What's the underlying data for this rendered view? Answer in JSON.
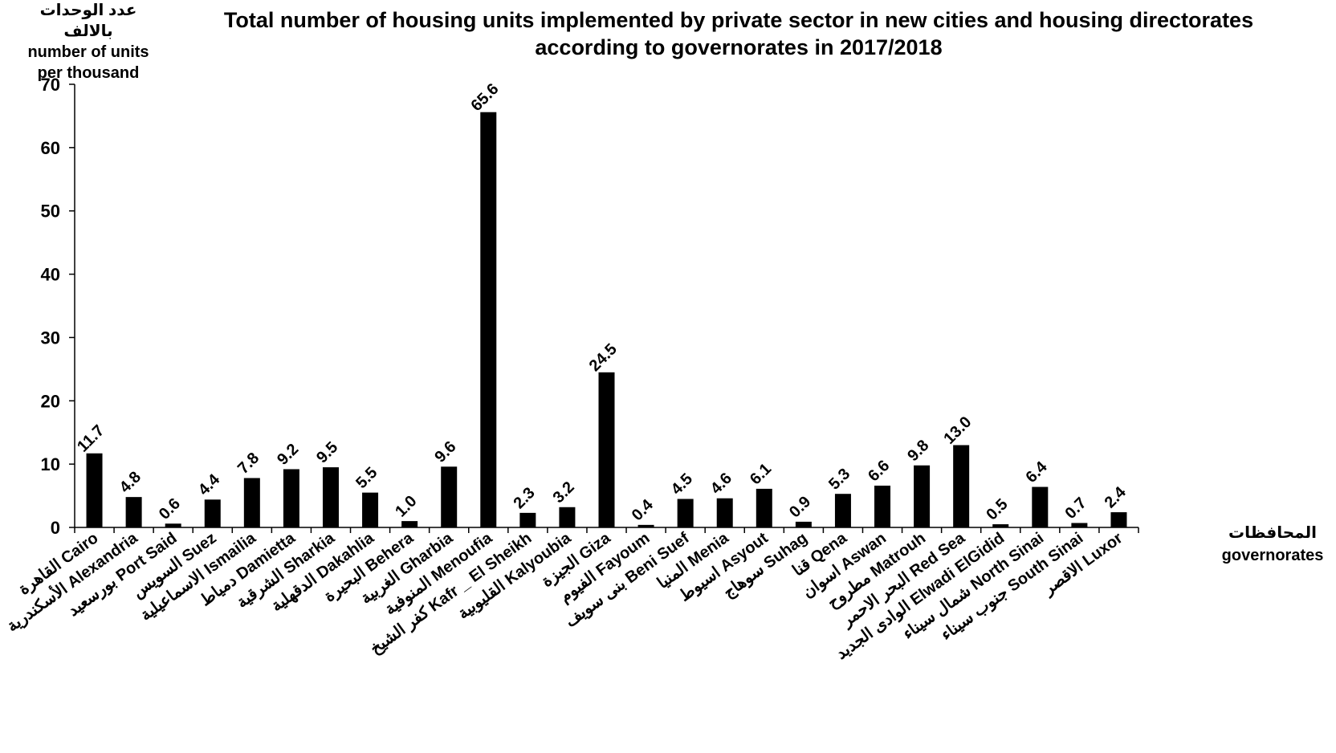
{
  "chart_data": {
    "type": "bar",
    "title": "Total number of housing units implemented by private sector in new cities and housing directorates according to governorates in 2017/2018",
    "ylabel": [
      "عدد الوحدات بالالف",
      "number of units",
      "per thousand"
    ],
    "xlabel": [
      "المحافظات",
      "governorates"
    ],
    "ylim": [
      0,
      70
    ],
    "yticks": [
      0,
      10,
      20,
      30,
      40,
      50,
      60,
      70
    ],
    "grid": false,
    "bar_color": "#000000",
    "categories": [
      "القاهرة Cairo",
      "الأسكندرية Alexandria",
      "بورسعيد Port Said",
      "السويس Suez",
      "الاسماعيلية Ismailia",
      "دمياط Damietta",
      "الشرقية Sharkia",
      "الدقهلية Dakahlia",
      "البحيرة Behera",
      "الغربية Gharbia",
      "المنوفية Menoufia",
      "كفر الشيخ Kafr _ El Sheikh",
      "القليوبية Kalyoubia",
      "الجيزة Giza",
      "الفيوم Fayoum",
      "بنى سويف Beni Suef",
      "المنيا Menia",
      "اسيوط Asyout",
      "سوهاج Suhag",
      "قنا Qena",
      "اسوان Aswan",
      "مطروح Matrouh",
      "البحر الاحمر Red Sea",
      "الوادى الجديد Elwadi ElGidid",
      "شمال سيناء North Sinai",
      "جنوب سيناء South Sinai",
      "الاقصر Luxor"
    ],
    "values": [
      11.7,
      4.8,
      0.6,
      4.4,
      7.8,
      9.2,
      9.5,
      5.5,
      1.0,
      9.6,
      65.6,
      2.3,
      3.2,
      24.5,
      0.4,
      4.5,
      4.6,
      6.1,
      0.9,
      5.3,
      6.6,
      9.8,
      13.0,
      0.5,
      6.4,
      0.7,
      2.4
    ],
    "value_labels": [
      "11.7",
      "4.8",
      "0.6",
      "4.4",
      "7.8",
      "9.2",
      "9.5",
      "5.5",
      "1.0",
      "9.6",
      "65.6",
      "2.3",
      "3.2",
      "24.5",
      "0.4",
      "4.5",
      "4.6",
      "6.1",
      "0.9",
      "5.3",
      "6.6",
      "9.8",
      "13.0",
      "0.5",
      "6.4",
      "0.7",
      "2.4"
    ]
  }
}
